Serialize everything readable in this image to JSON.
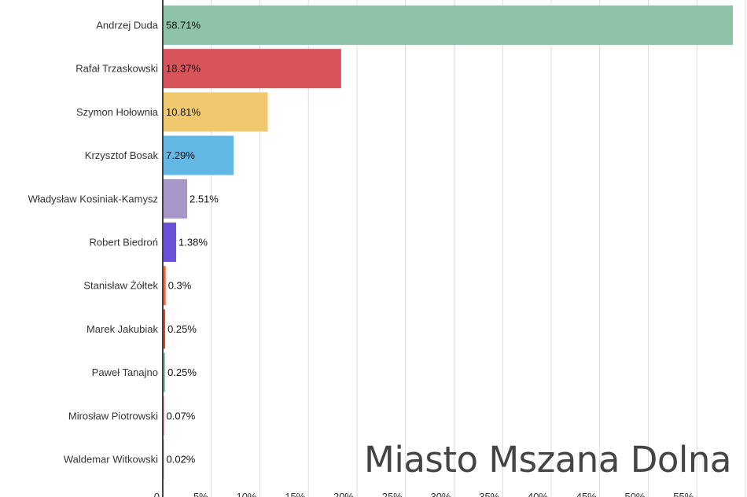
{
  "chart_data": {
    "type": "bar",
    "orientation": "horizontal",
    "title": "Miasto Mszana Dolna",
    "categories": [
      "Andrzej Duda",
      "Rafał Trzaskowski",
      "Szymon Hołownia",
      "Krzysztof Bosak",
      "Władysław Kosiniak-Kamysz",
      "Robert Biedroń",
      "Stanisław Żółtek",
      "Marek Jakubiak",
      "Paweł Tanajno",
      "Mirosław Piotrowski",
      "Waldemar Witkowski"
    ],
    "values": [
      58.71,
      18.37,
      10.81,
      7.29,
      2.51,
      1.38,
      0.3,
      0.25,
      0.25,
      0.07,
      0.02
    ],
    "data_labels": [
      "58.71%",
      "18.37%",
      "10.81%",
      "7.29%",
      "2.51%",
      "1.38%",
      "0.3%",
      "0.25%",
      "0.25%",
      "0.07%",
      "0.02%"
    ],
    "colors": [
      "#8fc3a8",
      "#d9545a",
      "#f0c96e",
      "#63b7e4",
      "#a996c8",
      "#6b52d9",
      "#ec6a43",
      "#d9472b",
      "#8fc3a8",
      "#d1577a",
      "#999999"
    ],
    "xticks": [
      "0",
      "5%",
      "10%",
      "15%",
      "20%",
      "25%",
      "30%",
      "35%",
      "40%",
      "45%",
      "50%",
      "55%"
    ],
    "xlim": [
      0,
      60
    ],
    "grid": true,
    "xlabel": "",
    "ylabel": ""
  }
}
